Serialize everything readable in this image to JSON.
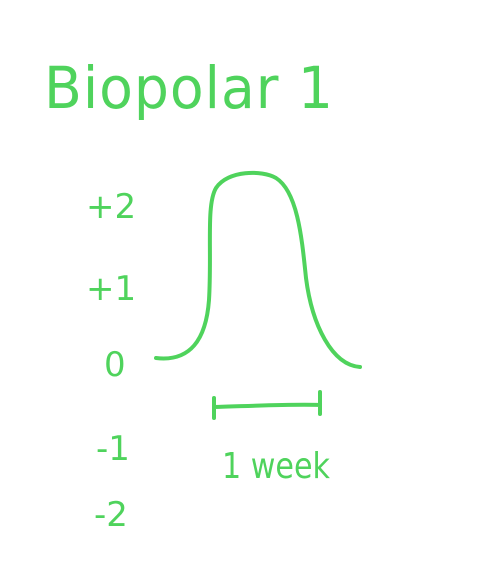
{
  "title": "Biopolar 1",
  "scale": {
    "labels": [
      "+2",
      "+1",
      "0",
      "-1",
      "-2"
    ]
  },
  "duration_label": "1 week",
  "colors": {
    "ink": "#4fd35c",
    "background": "#ffffff"
  }
}
